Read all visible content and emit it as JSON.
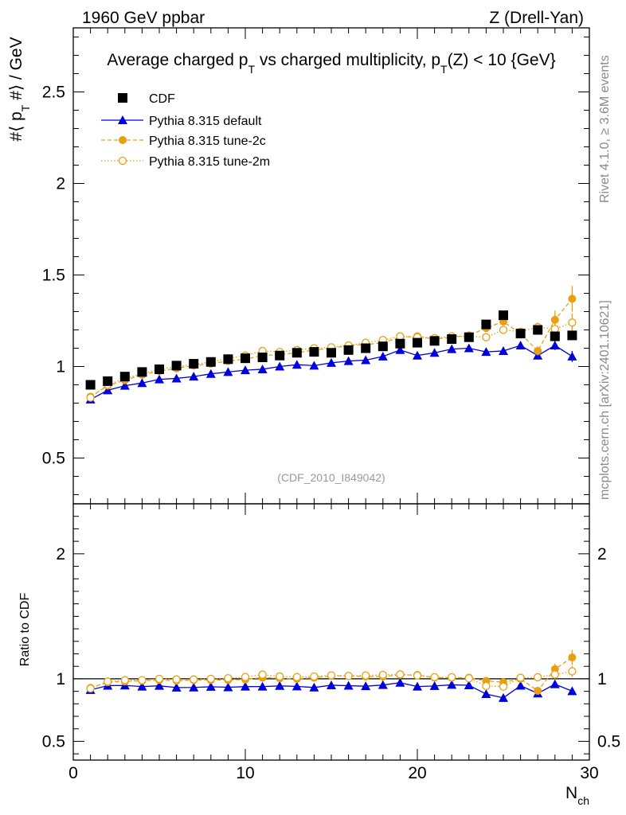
{
  "header": {
    "left": "1960 GeV ppbar",
    "right": "Z (Drell-Yan)"
  },
  "side_labels": {
    "rivet": "Rivet 4.1.0, ≥ 3.6M events",
    "mcplots": "mcplots.cern.ch [arXiv:2401.10621]"
  },
  "colors": {
    "data": "#000000",
    "default": "#0000dd",
    "tune": "#e8a010"
  },
  "chart_data": [
    {
      "type": "scatter",
      "panel": "main",
      "title_parts": [
        "Average charged p",
        "T",
        " vs charged multiplicity, p",
        "T",
        "(Z) < 10 {GeV}"
      ],
      "ylabel_parts": [
        "#⟨ p",
        "T",
        " #⟩ / GeV"
      ],
      "analysis_label": "(CDF_2010_I849042)",
      "xlim": [
        0,
        30
      ],
      "ylim": [
        0.25,
        2.85
      ],
      "yticks": [
        0.5,
        1,
        1.5,
        2,
        2.5
      ],
      "ytick_labels": [
        "0.5",
        "1",
        "1.5",
        "2",
        "2.5"
      ],
      "legend_position": "top-left",
      "x": [
        1,
        2,
        3,
        4,
        5,
        6,
        7,
        8,
        9,
        10,
        11,
        12,
        13,
        14,
        15,
        16,
        17,
        18,
        19,
        20,
        21,
        22,
        23,
        24,
        25,
        26,
        27,
        28,
        29
      ],
      "series": [
        {
          "name": "CDF",
          "style": "data",
          "values": [
            0.9,
            0.92,
            0.945,
            0.97,
            0.985,
            1.005,
            1.015,
            1.025,
            1.04,
            1.045,
            1.05,
            1.06,
            1.075,
            1.08,
            1.075,
            1.09,
            1.1,
            1.11,
            1.125,
            1.13,
            1.14,
            1.15,
            1.16,
            1.23,
            1.28,
            1.18,
            1.2,
            1.165,
            1.17
          ]
        },
        {
          "name": "Pythia 8.315 default",
          "style": "default",
          "values": [
            0.82,
            0.87,
            0.895,
            0.91,
            0.93,
            0.935,
            0.945,
            0.96,
            0.97,
            0.98,
            0.985,
            1.0,
            1.01,
            1.005,
            1.02,
            1.03,
            1.035,
            1.055,
            1.09,
            1.06,
            1.075,
            1.095,
            1.1,
            1.08,
            1.085,
            1.115,
            1.06,
            1.115,
            1.055
          ],
          "errors": [
            0.005,
            0.005,
            0.005,
            0.005,
            0.005,
            0.005,
            0.005,
            0.005,
            0.005,
            0.005,
            0.005,
            0.005,
            0.005,
            0.005,
            0.005,
            0.005,
            0.005,
            0.005,
            0.008,
            0.008,
            0.008,
            0.01,
            0.01,
            0.012,
            0.015,
            0.015,
            0.02,
            0.025,
            0.03
          ]
        },
        {
          "name": "Pythia 8.315 tune-2c",
          "style": "tune-filled",
          "values": [
            0.835,
            0.895,
            0.925,
            0.955,
            0.975,
            0.99,
            1.005,
            1.015,
            1.03,
            1.04,
            1.06,
            1.065,
            1.075,
            1.09,
            1.1,
            1.115,
            1.12,
            1.13,
            1.16,
            1.165,
            1.15,
            1.16,
            1.17,
            1.21,
            1.245,
            1.18,
            1.085,
            1.255,
            1.37
          ],
          "errors": [
            0.005,
            0.005,
            0.005,
            0.005,
            0.005,
            0.005,
            0.005,
            0.005,
            0.005,
            0.005,
            0.005,
            0.005,
            0.005,
            0.005,
            0.005,
            0.005,
            0.006,
            0.006,
            0.008,
            0.008,
            0.01,
            0.01,
            0.012,
            0.015,
            0.018,
            0.02,
            0.025,
            0.05,
            0.07
          ]
        },
        {
          "name": "Pythia 8.315 tune-2m",
          "style": "tune-open",
          "values": [
            0.83,
            0.9,
            0.935,
            0.96,
            0.985,
            1.0,
            1.01,
            1.025,
            1.045,
            1.06,
            1.085,
            1.08,
            1.09,
            1.1,
            1.105,
            1.115,
            1.13,
            1.145,
            1.165,
            1.16,
            1.155,
            1.165,
            1.165,
            1.16,
            1.2,
            1.19,
            1.215,
            1.205,
            1.24
          ],
          "errors": [
            0.005,
            0.005,
            0.005,
            0.005,
            0.005,
            0.005,
            0.005,
            0.005,
            0.005,
            0.005,
            0.005,
            0.005,
            0.005,
            0.005,
            0.005,
            0.005,
            0.006,
            0.006,
            0.008,
            0.008,
            0.01,
            0.01,
            0.012,
            0.015,
            0.018,
            0.02,
            0.025,
            0.04,
            0.05
          ]
        }
      ]
    },
    {
      "type": "scatter",
      "panel": "ratio",
      "ylabel": "Ratio to CDF",
      "xlabel_parts": [
        "N",
        "ch"
      ],
      "xlim": [
        0,
        30
      ],
      "ylim": [
        0.35,
        2.4
      ],
      "xticks": [
        0,
        10,
        20,
        30
      ],
      "xtick_labels": [
        "0",
        "10",
        "20",
        "30"
      ],
      "yticks": [
        0.5,
        1,
        2
      ],
      "ytick_labels": [
        "0.5",
        "1",
        "2"
      ],
      "reference": 1
    }
  ]
}
